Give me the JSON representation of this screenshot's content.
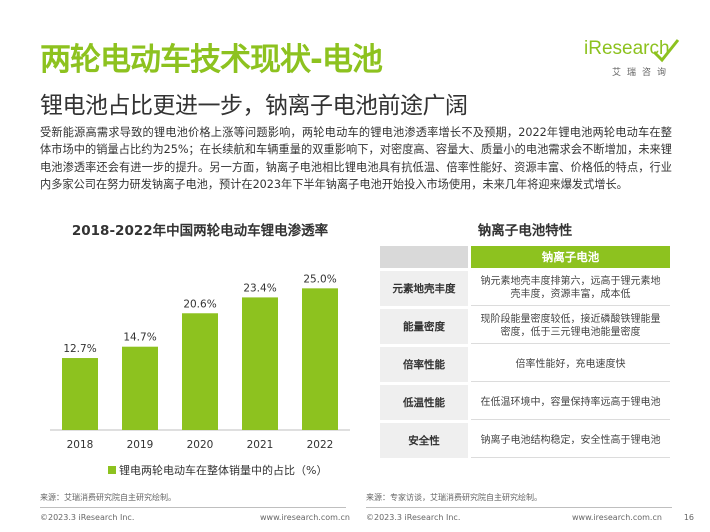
{
  "header": {
    "title": "两轮电动车技术现状-电池",
    "subtitle": "锂电池占比更进一步，钠离子电池前途广阔"
  },
  "logo": {
    "wordmark": "iResearch",
    "sub": "艾瑞咨询"
  },
  "body": {
    "paragraph": "受新能源高需求导致的锂电池价格上涨等问题影响，两轮电动车的锂电池渗透率增长不及预期，2022年锂电池两轮电动车在整体市场中的销量占比约为25%；在长续航和车辆重量的双重影响下，对密度高、容量大、质量小的电池需求会不断增加，未来锂电池渗透率还会有进一步的提升。另一方面，钠离子电池相比锂电池具有抗低温、倍率性能好、资源丰富、价格低的特点，行业内多家公司在努力研发钠离子电池，预计在2023年下半年钠离子电池开始投入市场使用，未来几年将迎来爆发式增长。"
  },
  "chart_data": {
    "type": "bar",
    "title": "2018-2022年中国两轮电动车锂电渗透率",
    "categories": [
      "2018",
      "2019",
      "2020",
      "2021",
      "2022"
    ],
    "values": [
      12.7,
      14.7,
      20.6,
      23.4,
      25.0
    ],
    "data_labels": [
      "12.7%",
      "14.7%",
      "20.6%",
      "23.4%",
      "25.0%"
    ],
    "series": [
      {
        "name": "锂电两轮电动车在整体销量中的占比（%）",
        "values": [
          12.7,
          14.7,
          20.6,
          23.4,
          25.0
        ]
      }
    ],
    "ylim": [
      0,
      30
    ],
    "color": "#8dc21f",
    "grid": false,
    "legend_position": "bottom"
  },
  "table": {
    "title": "钠离子电池特性",
    "header": "钠离子电池",
    "rows": [
      {
        "key": "元素地壳丰度",
        "value": "钠元素地壳丰度排第六，远高于锂元素地壳丰度，资源丰富，成本低"
      },
      {
        "key": "能量密度",
        "value": "现阶段能量密度较低，接近磷酸铁锂能量密度，低于三元锂电池能量密度"
      },
      {
        "key": "倍率性能",
        "value": "倍率性能好，充电速度快"
      },
      {
        "key": "低温性能",
        "value": "在低温环境中，容量保持率远高于锂电池"
      },
      {
        "key": "安全性",
        "value": "钠离子电池结构稳定，安全性高于锂电池"
      }
    ]
  },
  "footer": {
    "source_left": "来源：艾瑞消费研究院自主研究绘制。",
    "source_right": "来源：专家访谈，艾瑞消费研究院自主研究绘制。",
    "copyright_left": "©2023.3 iResearch Inc.",
    "site_left": "www.iresearch.com.cn",
    "copyright_right": "©2023.3 iResearch Inc.",
    "site_right": "www.iresearch.com.cn",
    "page": "16"
  },
  "colors": {
    "accent": "#8dc21f",
    "text": "#333333"
  }
}
